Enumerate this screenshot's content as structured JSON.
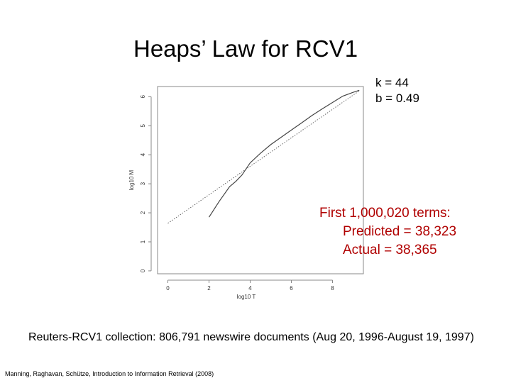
{
  "slide": {
    "title": "Heaps’ Law for RCV1",
    "params": {
      "k": "k = 44",
      "b": "b = 0.49"
    },
    "prediction": {
      "heading": "First 1,000,020 terms:",
      "predicted": "Predicted = 38,323",
      "actual": "Actual = 38,365"
    },
    "collection_note": "Reuters-RCV1 collection: 806,791 newswire documents (Aug 20, 1996-August 19, 1997)",
    "citation": "Manning, Raghavan, Schütze, Introduction to Information Retrieval (2008)"
  },
  "chart_data": {
    "type": "line",
    "xlabel": "log10 T",
    "ylabel": "log10 M",
    "xlim": [
      -0.5,
      9.5
    ],
    "ylim": [
      -0.1,
      6.35
    ],
    "xticks": [
      0,
      2,
      4,
      6,
      8
    ],
    "yticks": [
      0,
      1,
      2,
      3,
      4,
      5,
      6
    ],
    "grid": false,
    "series": [
      {
        "style": "dotted",
        "x": [
          0,
          9.3
        ],
        "y": [
          1.64,
          6.2
        ]
      },
      {
        "style": "solid",
        "x": [
          2.0,
          2.5,
          3.0,
          3.3,
          3.6,
          4.0,
          4.5,
          5.0,
          5.5,
          6.0,
          6.5,
          7.0,
          7.5,
          8.0,
          8.5,
          9.0,
          9.3
        ],
        "y": [
          1.85,
          2.4,
          2.9,
          3.08,
          3.3,
          3.72,
          4.05,
          4.35,
          4.6,
          4.85,
          5.1,
          5.35,
          5.58,
          5.8,
          6.02,
          6.15,
          6.22
        ]
      }
    ]
  }
}
